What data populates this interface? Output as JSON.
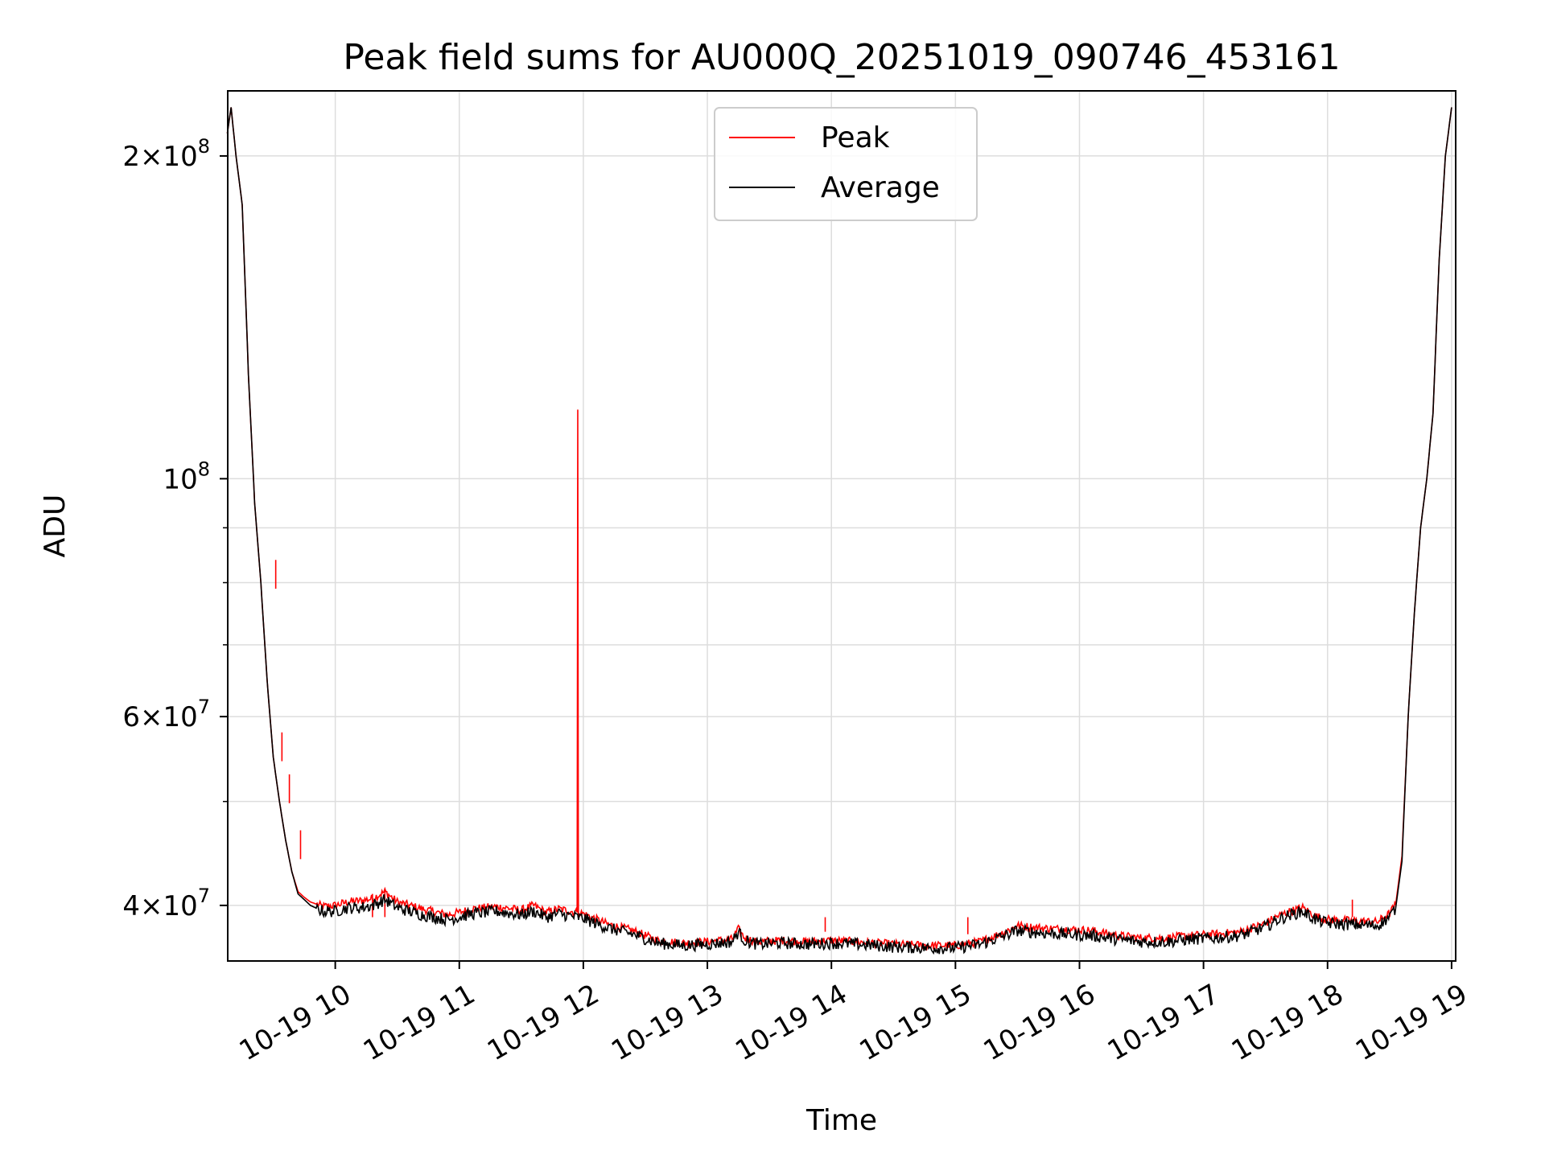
{
  "chart_data": {
    "type": "line",
    "title": "Peak field sums for AU000Q_20251019_090746_453161",
    "xlabel": "Time",
    "ylabel": "ADU",
    "y_scale": "log",
    "ylim": [
      35500000,
      230000000
    ],
    "xlim": [
      9.133,
      19.033
    ],
    "grid": true,
    "legend": {
      "position": "upper center",
      "entries": [
        "Peak",
        "Average"
      ]
    },
    "x_ticks": [
      {
        "value": 10,
        "label": "10-19 10"
      },
      {
        "value": 11,
        "label": "10-19 11"
      },
      {
        "value": 12,
        "label": "10-19 12"
      },
      {
        "value": 13,
        "label": "10-19 13"
      },
      {
        "value": 14,
        "label": "10-19 14"
      },
      {
        "value": 15,
        "label": "10-19 15"
      },
      {
        "value": 16,
        "label": "10-19 16"
      },
      {
        "value": 17,
        "label": "10-19 17"
      },
      {
        "value": 18,
        "label": "10-19 18"
      },
      {
        "value": 19,
        "label": "10-19 19"
      }
    ],
    "y_ticks": [
      {
        "value": 40000000,
        "mant": "4",
        "exp": "7"
      },
      {
        "value": 60000000,
        "mant": "6",
        "exp": "7"
      },
      {
        "value": 100000000,
        "mant": "",
        "exp": "8"
      },
      {
        "value": 200000000,
        "mant": "2",
        "exp": "8"
      }
    ],
    "y_minor_ticks": [
      50000000,
      70000000,
      80000000,
      90000000,
      300000000
    ],
    "series": [
      {
        "name": "Average",
        "color": "#000000",
        "x": [
          9.13,
          9.16,
          9.2,
          9.25,
          9.3,
          9.35,
          9.4,
          9.45,
          9.5,
          9.55,
          9.6,
          9.65,
          9.7,
          9.75,
          9.8,
          9.9,
          10.0,
          10.1,
          10.2,
          10.3,
          10.4,
          10.5,
          10.7,
          10.9,
          11.0,
          11.1,
          11.3,
          11.5,
          11.6,
          11.7,
          11.8,
          12.0,
          12.2,
          12.4,
          12.6,
          12.8,
          13.0,
          13.2,
          13.25,
          13.3,
          13.4,
          13.6,
          13.8,
          14.0,
          14.2,
          14.5,
          14.8,
          15.0,
          15.2,
          15.4,
          15.5,
          15.7,
          15.9,
          16.1,
          16.3,
          16.5,
          16.7,
          16.9,
          17.1,
          17.3,
          17.5,
          17.6,
          17.7,
          17.8,
          17.9,
          18.0,
          18.2,
          18.4,
          18.5,
          18.55,
          18.6,
          18.65,
          18.7,
          18.75,
          18.8,
          18.85,
          18.9,
          18.95,
          19.0
        ],
        "y": [
          210000000,
          222000000,
          200000000,
          180000000,
          125000000,
          95000000,
          80000000,
          65000000,
          55000000,
          50000000,
          46000000,
          43000000,
          41000000,
          40500000,
          40000000,
          39500000,
          39500000,
          39800000,
          39800000,
          40000000,
          40500000,
          39800000,
          39200000,
          38800000,
          39000000,
          39300000,
          39500000,
          39200000,
          39500000,
          39000000,
          39300000,
          38900000,
          38100000,
          37600000,
          36900000,
          36700000,
          36800000,
          37000000,
          37800000,
          37100000,
          36800000,
          36900000,
          36800000,
          36900000,
          36800000,
          36600000,
          36500000,
          36500000,
          36800000,
          37500000,
          37900000,
          37700000,
          37600000,
          37500000,
          37200000,
          37000000,
          37000000,
          37200000,
          37300000,
          37500000,
          38200000,
          38800000,
          39200000,
          39500000,
          38800000,
          38500000,
          38400000,
          38300000,
          39000000,
          39800000,
          44000000,
          60000000,
          75000000,
          90000000,
          100000000,
          115000000,
          160000000,
          200000000,
          222000000
        ]
      },
      {
        "name": "Peak",
        "color": "#ff0000",
        "x": [
          9.13,
          9.16,
          9.2,
          9.25,
          9.3,
          9.35,
          9.4,
          9.45,
          9.5,
          9.55,
          9.6,
          9.65,
          9.7,
          9.75,
          9.8,
          9.9,
          10.0,
          10.1,
          10.2,
          10.3,
          10.4,
          10.5,
          10.7,
          10.9,
          11.0,
          11.1,
          11.3,
          11.5,
          11.6,
          11.7,
          11.8,
          11.95,
          11.955,
          11.96,
          12.0,
          12.2,
          12.4,
          12.6,
          12.8,
          13.0,
          13.2,
          13.25,
          13.3,
          13.4,
          13.6,
          13.8,
          14.0,
          14.2,
          14.5,
          14.8,
          15.0,
          15.2,
          15.4,
          15.5,
          15.7,
          15.9,
          16.1,
          16.3,
          16.5,
          16.7,
          16.9,
          17.1,
          17.3,
          17.5,
          17.6,
          17.7,
          17.8,
          17.9,
          18.0,
          18.2,
          18.4,
          18.5,
          18.55,
          18.6,
          18.65,
          18.7,
          18.75,
          18.8,
          18.85,
          18.9,
          18.95,
          19.0
        ],
        "y": [
          210000000,
          222000000,
          200000000,
          180000000,
          125000000,
          95000000,
          80000000,
          65000000,
          55000000,
          50000000,
          46000000,
          43000000,
          41200000,
          40700000,
          40300000,
          39900000,
          40000000,
          40300000,
          40400000,
          40600000,
          41200000,
          40300000,
          39700000,
          39200000,
          39400000,
          39700000,
          39900000,
          39600000,
          40000000,
          39400000,
          39700000,
          39400000,
          116000000,
          39400000,
          39300000,
          38400000,
          37900000,
          37100000,
          36900000,
          37000000,
          37200000,
          38000000,
          37300000,
          37000000,
          37100000,
          37000000,
          37100000,
          37000000,
          36800000,
          36700000,
          36700000,
          37000000,
          37800000,
          38300000,
          38100000,
          38000000,
          37900000,
          37500000,
          37300000,
          37300000,
          37500000,
          37600000,
          37800000,
          38500000,
          39100000,
          39500000,
          39800000,
          39100000,
          38800000,
          38700000,
          38600000,
          39300000,
          40100000,
          44500000,
          60000000,
          75000000,
          90000000,
          100000000,
          115000000,
          160000000,
          200000000,
          222000000
        ]
      }
    ],
    "spikes": [
      {
        "x": 9.52,
        "y": 84000000
      },
      {
        "x": 9.57,
        "y": 58000000
      },
      {
        "x": 9.63,
        "y": 53000000
      },
      {
        "x": 9.72,
        "y": 47000000
      },
      {
        "x": 10.4,
        "y": 41500000
      },
      {
        "x": 10.3,
        "y": 41000000
      },
      {
        "x": 13.95,
        "y": 37800000
      },
      {
        "x": 15.1,
        "y": 37600000
      },
      {
        "x": 18.2,
        "y": 40500000
      }
    ]
  }
}
